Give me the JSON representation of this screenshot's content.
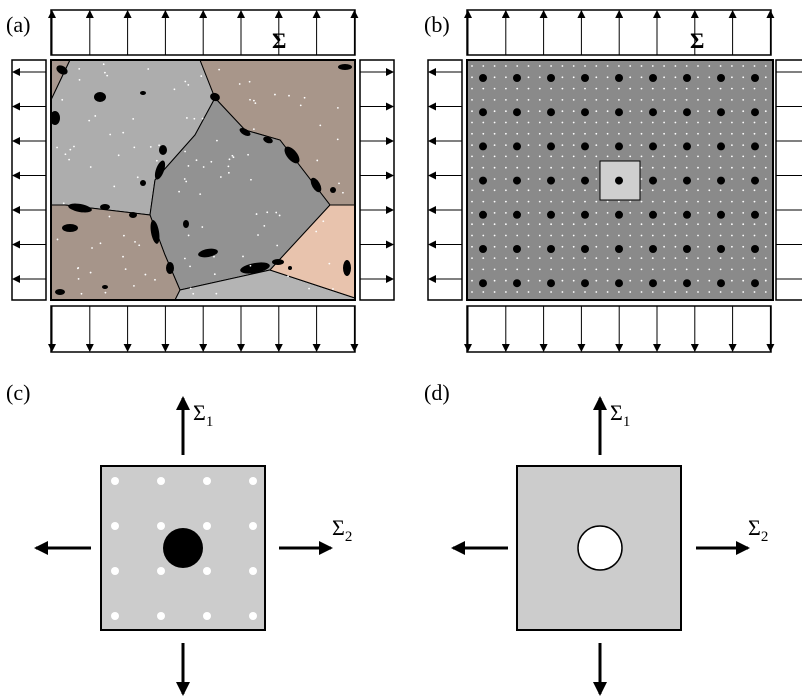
{
  "panels": [
    {
      "label": "(a)",
      "load": "Σ"
    },
    {
      "label": "(b)",
      "load": "Σ"
    },
    {
      "label": "(c)",
      "sigma1": {
        "symbol": "Σ",
        "subscript": "1"
      },
      "sigma2": {
        "symbol": "Σ",
        "subscript": "2"
      }
    },
    {
      "label": "(d)",
      "sigma1": {
        "symbol": "Σ",
        "subscript": "1"
      },
      "sigma2": {
        "symbol": "Σ",
        "subscript": "2"
      }
    }
  ]
}
